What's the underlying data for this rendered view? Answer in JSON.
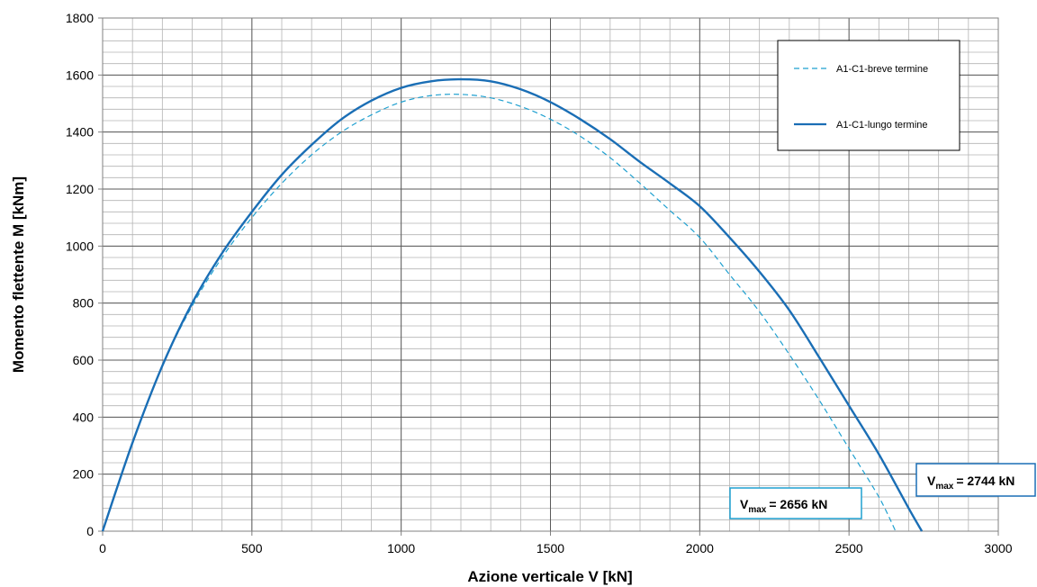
{
  "chart_data": {
    "type": "line",
    "title": "",
    "xlabel": "Azione verticale V [kN]",
    "ylabel": "Momento flettente M [kNm]",
    "xlim": [
      0,
      3000
    ],
    "ylim": [
      0,
      1800
    ],
    "xticks": [
      0,
      500,
      1000,
      1500,
      2000,
      2500,
      3000
    ],
    "yticks": [
      0,
      200,
      400,
      600,
      800,
      1000,
      1200,
      1400,
      1600,
      1800
    ],
    "grid": true,
    "legend_position": "top-right",
    "series": [
      {
        "name": "A1-C1-breve termine",
        "style": "dashed",
        "color": "#1fa0d0",
        "x": [
          0,
          100,
          200,
          300,
          400,
          500,
          600,
          700,
          800,
          900,
          1000,
          1100,
          1200,
          1300,
          1400,
          1500,
          1600,
          1700,
          1800,
          1900,
          2000,
          2100,
          2200,
          2300,
          2400,
          2500,
          2600,
          2656
        ],
        "y": [
          0,
          310,
          580,
          790,
          960,
          1100,
          1220,
          1320,
          1400,
          1460,
          1505,
          1528,
          1532,
          1520,
          1490,
          1445,
          1385,
          1310,
          1220,
          1125,
          1030,
          900,
          770,
          620,
          460,
          290,
          120,
          0
        ]
      },
      {
        "name": "A1-C1-lungo termine",
        "style": "solid",
        "color": "#1a6eb5",
        "x": [
          0,
          100,
          200,
          300,
          400,
          500,
          600,
          700,
          800,
          900,
          1000,
          1100,
          1200,
          1300,
          1400,
          1500,
          1600,
          1700,
          1800,
          1900,
          2000,
          2100,
          2200,
          2300,
          2400,
          2500,
          2600,
          2700,
          2744
        ],
        "y": [
          0,
          310,
          580,
          800,
          975,
          1120,
          1250,
          1355,
          1445,
          1510,
          1555,
          1578,
          1585,
          1578,
          1550,
          1505,
          1445,
          1375,
          1295,
          1220,
          1140,
          1030,
          910,
          775,
          610,
          440,
          270,
          80,
          0
        ]
      }
    ],
    "annotations": [
      {
        "label": "V",
        "sub": "max",
        "value": "= 2656 kN",
        "color": "#1fa0d0"
      },
      {
        "label": "V",
        "sub": "max",
        "value": "= 2744 kN",
        "color": "#1a6eb5"
      }
    ]
  }
}
